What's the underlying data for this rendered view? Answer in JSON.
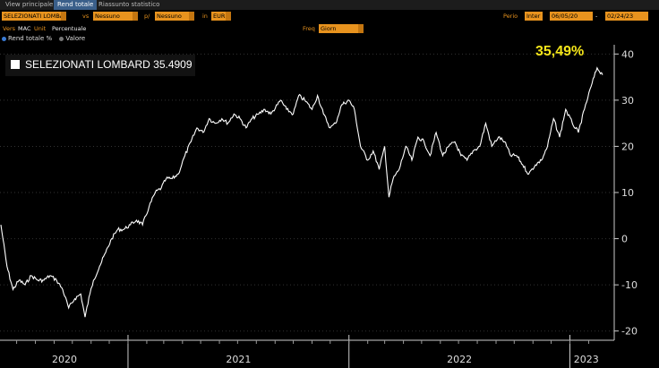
{
  "tabs": [
    "View principale",
    "Rend totale",
    "Riassunto statistico"
  ],
  "toolbar": {
    "security": "SELEZIONATI LOMBARD",
    "vs_label": "vs",
    "vs_value": "Nessuno",
    "p_label": "p/",
    "p_value": "Nessuno",
    "in_label": "in",
    "currency": "EUR",
    "period_label": "Perio",
    "period_value": "Inter",
    "start_date": "06/05/20",
    "end_date": "02/24/23",
    "vers_label": "Vers",
    "vers_value": "MAC",
    "unit_label": "Unit",
    "unit_value": "Percentuale",
    "freq_label": "Freq",
    "freq_value": "Giorn"
  },
  "legend_toggles": [
    "Rend totale %",
    "Valore"
  ],
  "colors": {
    "accent": "#e8931e",
    "line": "#ffffff",
    "highlight": "#f5e61a",
    "toggle_on": "#3a7bd5",
    "toggle_off": "#777777"
  },
  "chart_data": {
    "type": "line",
    "legend_entry": "SELEZIONATI LOMBARD 35.4909",
    "last_value_label": "35,49%",
    "ylim": [
      -22,
      42
    ],
    "yticks": [
      40,
      30,
      20,
      10,
      0,
      -10,
      -20
    ],
    "x_tick_labels": [
      "2020",
      "2021",
      "2022",
      "2023"
    ],
    "x_start": "2020-06-05",
    "x_end": "2023-02-24",
    "series": [
      {
        "x": [
          "2020-06-05",
          "2020-06-15",
          "2020-06-25",
          "2020-07-05",
          "2020-07-15",
          "2020-07-25",
          "2020-08-05",
          "2020-08-15",
          "2020-08-25",
          "2020-09-05",
          "2020-09-15",
          "2020-09-25",
          "2020-10-05",
          "2020-10-15",
          "2020-10-22",
          "2020-10-30",
          "2020-11-05",
          "2020-11-15",
          "2020-11-25",
          "2020-12-05",
          "2020-12-15",
          "2020-12-25",
          "2021-01-05",
          "2021-01-15",
          "2021-01-25",
          "2021-02-05",
          "2021-02-15",
          "2021-02-25",
          "2021-03-05",
          "2021-03-15",
          "2021-03-25",
          "2021-04-05",
          "2021-04-15",
          "2021-04-25",
          "2021-05-05",
          "2021-05-15",
          "2021-05-25",
          "2021-06-05",
          "2021-06-15",
          "2021-06-25",
          "2021-07-05",
          "2021-07-15",
          "2021-07-25",
          "2021-08-05",
          "2021-08-15",
          "2021-08-25",
          "2021-09-05",
          "2021-09-10",
          "2021-09-20",
          "2021-10-01",
          "2021-10-10",
          "2021-10-20",
          "2021-11-01",
          "2021-11-10",
          "2021-11-20",
          "2021-12-01",
          "2021-12-10",
          "2021-12-20",
          "2022-01-01",
          "2022-01-10",
          "2022-01-20",
          "2022-02-01",
          "2022-02-10",
          "2022-02-20",
          "2022-03-01",
          "2022-03-08",
          "2022-03-15",
          "2022-03-25",
          "2022-04-05",
          "2022-04-15",
          "2022-04-25",
          "2022-05-05",
          "2022-05-15",
          "2022-05-25",
          "2022-06-05",
          "2022-06-15",
          "2022-06-25",
          "2022-07-05",
          "2022-07-15",
          "2022-07-25",
          "2022-08-05",
          "2022-08-15",
          "2022-08-25",
          "2022-09-05",
          "2022-09-15",
          "2022-09-25",
          "2022-10-05",
          "2022-10-15",
          "2022-10-25",
          "2022-11-05",
          "2022-11-15",
          "2022-11-25",
          "2022-12-05",
          "2022-12-15",
          "2022-12-25",
          "2023-01-05",
          "2023-01-15",
          "2023-01-25",
          "2023-02-05",
          "2023-02-15",
          "2023-02-24"
        ],
        "y": [
          3,
          -6,
          -11,
          -9,
          -10,
          -8,
          -9,
          -9,
          -8,
          -9,
          -11,
          -15,
          -13,
          -12,
          -17,
          -12,
          -9,
          -6,
          -3,
          0,
          2,
          2,
          3,
          4,
          3,
          7,
          10,
          11,
          13,
          13,
          14,
          18,
          21,
          24,
          23,
          26,
          25,
          26,
          25,
          27,
          26,
          24,
          26,
          27,
          28,
          27,
          29,
          30,
          28,
          27,
          31,
          30,
          28,
          31,
          27,
          24,
          25,
          29,
          30,
          28,
          20,
          17,
          19,
          15,
          20,
          9,
          13,
          15,
          20,
          17,
          22,
          21,
          18,
          23,
          18,
          20,
          21,
          18,
          17,
          19,
          20,
          25,
          20,
          22,
          21,
          18,
          18,
          16,
          14,
          16,
          17,
          20,
          26,
          22,
          28,
          25,
          23,
          28,
          33,
          37,
          35.49
        ]
      }
    ]
  }
}
